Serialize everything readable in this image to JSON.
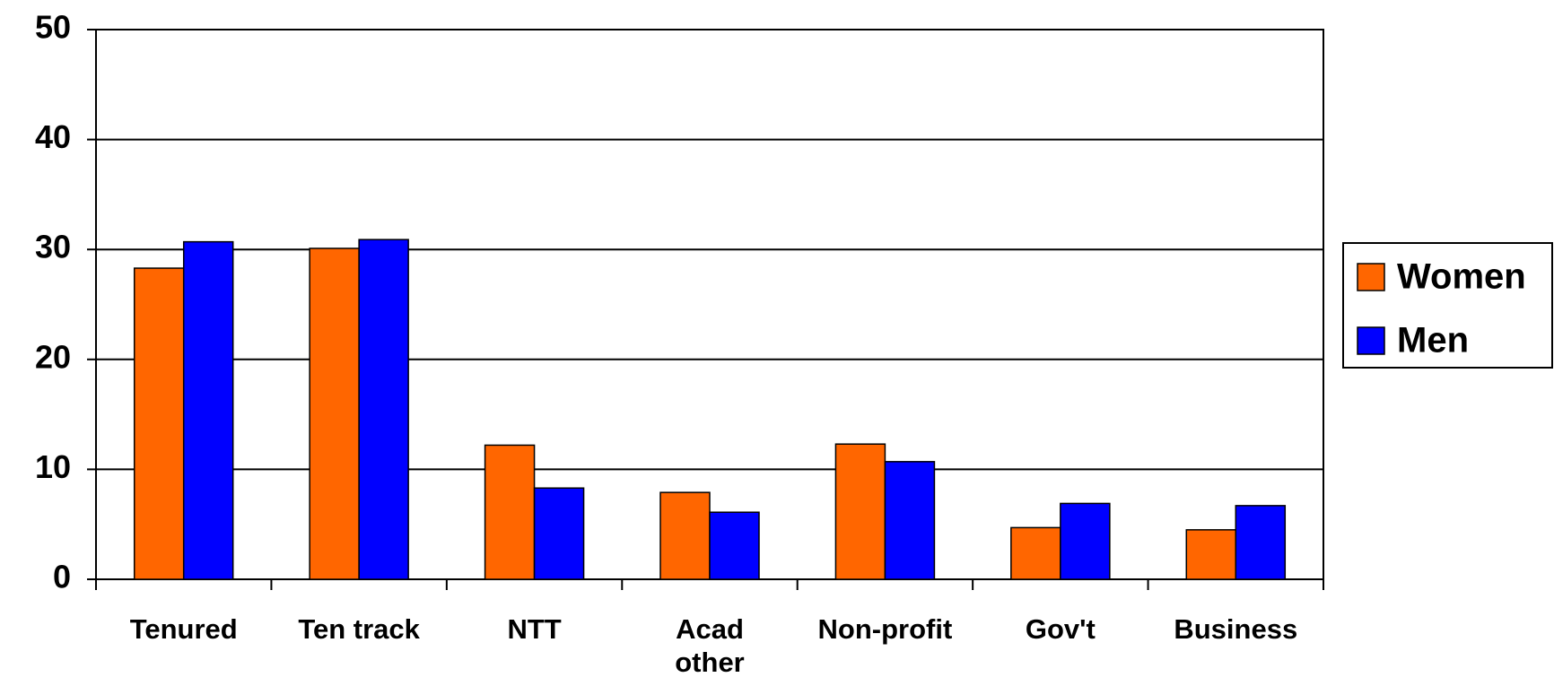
{
  "chart_data": {
    "type": "bar",
    "categories": [
      "Tenured",
      "Ten track",
      "NTT",
      "Acad\nother",
      "Non-profit",
      "Gov't",
      "Business"
    ],
    "series": [
      {
        "name": "Women",
        "color": "#ff6600",
        "values": [
          28.3,
          30.1,
          12.2,
          7.9,
          12.3,
          4.7,
          4.5
        ]
      },
      {
        "name": "Men",
        "color": "#0000ff",
        "values": [
          30.7,
          30.9,
          8.3,
          6.1,
          10.7,
          6.9,
          6.7
        ]
      }
    ],
    "ylim": [
      0,
      50
    ],
    "yticks": [
      0,
      10,
      20,
      30,
      40,
      50
    ],
    "grid": true,
    "legend": "right"
  }
}
